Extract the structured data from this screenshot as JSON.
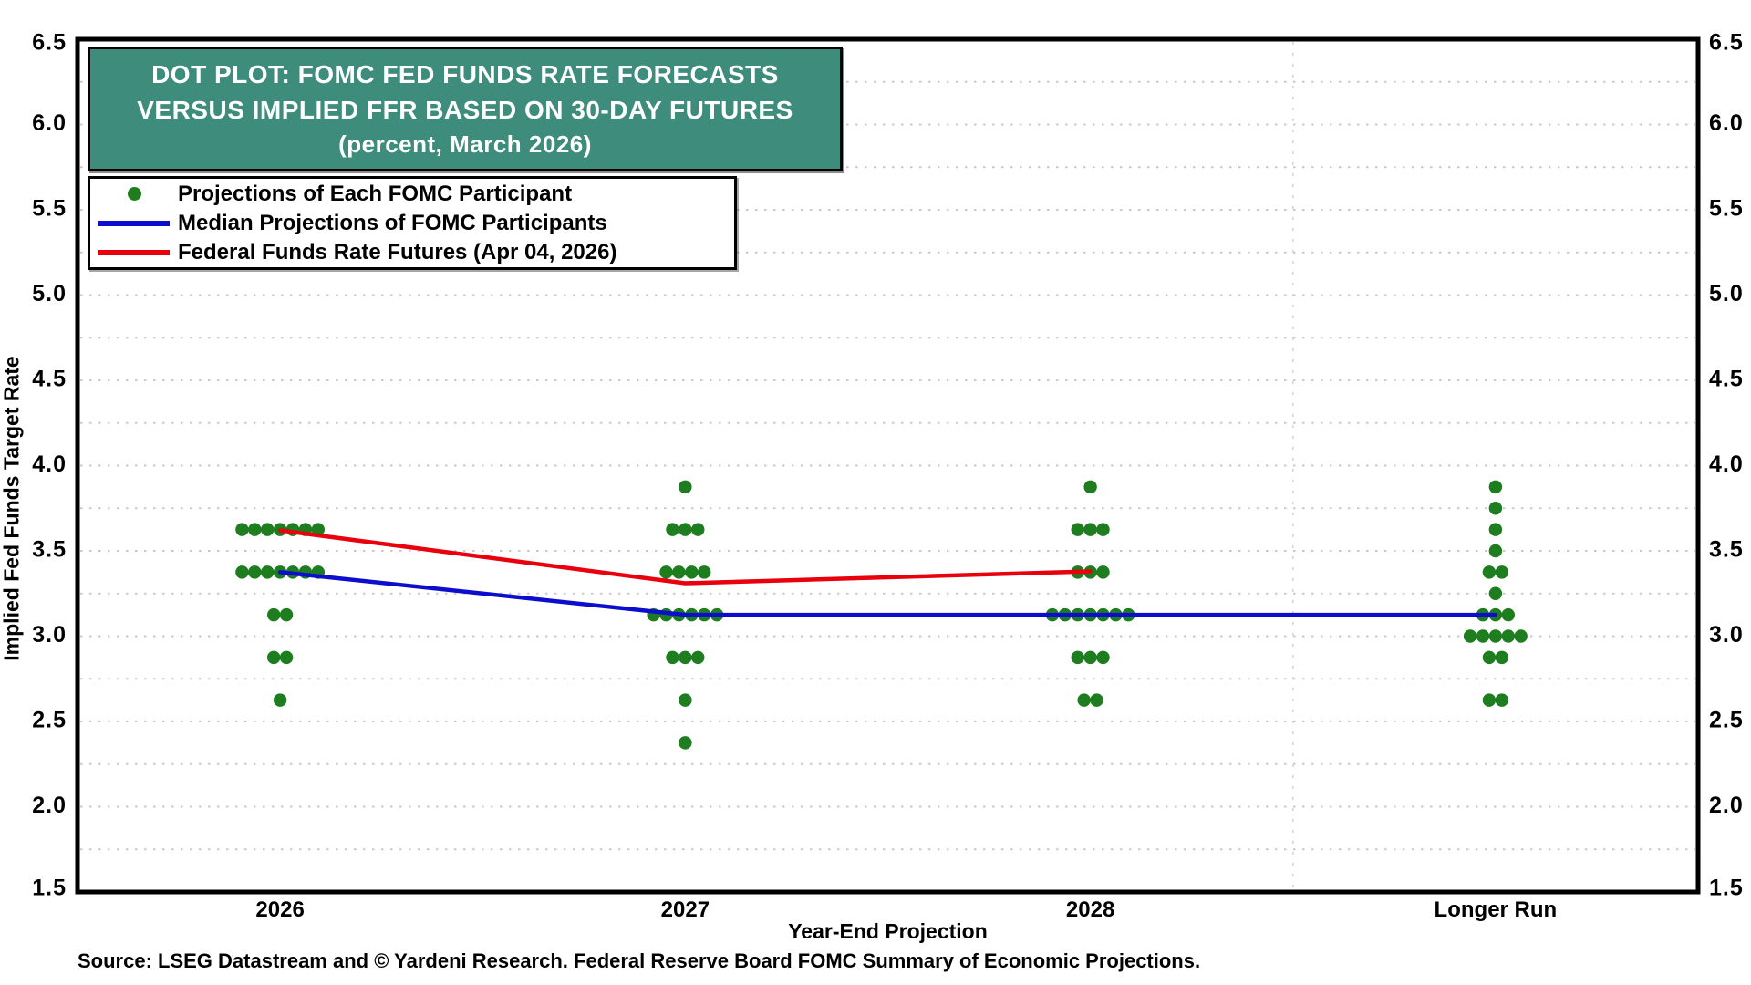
{
  "title_box": {
    "line1": "DOT PLOT: FOMC FED FUNDS RATE FORECASTS",
    "line2": "VERSUS IMPLIED FFR BASED ON 30-DAY FUTURES",
    "line3": "(percent, March 2026)",
    "bg_color": "#3E8C7B",
    "text_color": "#FFFFFF"
  },
  "legend": {
    "items": [
      {
        "swatch": "dot",
        "color": "#1E7D1E",
        "label": "Projections of Each FOMC Participant"
      },
      {
        "swatch": "line",
        "color": "#0D0DCE",
        "label": "Median Projections of FOMC Participants"
      },
      {
        "swatch": "line",
        "color": "#E8000D",
        "label": "Federal Funds Rate Futures (Apr 04, 2026)"
      }
    ]
  },
  "footer": {
    "source": "Source: LSEG Datastream and © Yardeni Research. Federal Reserve Board FOMC Summary of Economic Projections."
  },
  "chart_data": {
    "type": "scatter",
    "title": "DOT PLOT: FOMC FED FUNDS RATE FORECASTS VERSUS IMPLIED FFR BASED ON 30-DAY FUTURES (percent, March 2026)",
    "xlabel": "Year-End Projection",
    "ylabel": "Implied Fed Funds Target Rate",
    "categories": [
      "2026",
      "2027",
      "2028",
      "Longer Run"
    ],
    "ylim": [
      1.5,
      6.5
    ],
    "y_ticks": [
      6.5,
      6.0,
      5.5,
      5.0,
      4.5,
      4.0,
      3.5,
      3.0,
      2.5,
      2.0,
      1.5
    ],
    "y_tick_labels": [
      "6.5",
      "6.0",
      "5.5",
      "5.0",
      "4.5",
      "4.0",
      "3.5",
      "3.0",
      "2.5",
      "2.0",
      "1.5"
    ],
    "grid": {
      "horizontal_step": 0.25,
      "style": "dotted",
      "color": "#C9C9C9",
      "vertical_divider_fraction": 0.75
    },
    "legend_position": "top-left",
    "dot_series": {
      "name": "Projections of Each FOMC Participant",
      "color": "#1E7D1E",
      "dots_by_category": [
        {
          "category": "2026",
          "rows": [
            {
              "rate": 3.625,
              "count": 7
            },
            {
              "rate": 3.375,
              "count": 7
            },
            {
              "rate": 3.125,
              "count": 2
            },
            {
              "rate": 2.875,
              "count": 2
            },
            {
              "rate": 2.625,
              "count": 1
            }
          ]
        },
        {
          "category": "2027",
          "rows": [
            {
              "rate": 3.875,
              "count": 1
            },
            {
              "rate": 3.625,
              "count": 3
            },
            {
              "rate": 3.375,
              "count": 4
            },
            {
              "rate": 3.125,
              "count": 6
            },
            {
              "rate": 2.875,
              "count": 3
            },
            {
              "rate": 2.625,
              "count": 1
            },
            {
              "rate": 2.375,
              "count": 1
            }
          ]
        },
        {
          "category": "2028",
          "rows": [
            {
              "rate": 3.875,
              "count": 1
            },
            {
              "rate": 3.625,
              "count": 3
            },
            {
              "rate": 3.375,
              "count": 3
            },
            {
              "rate": 3.125,
              "count": 7
            },
            {
              "rate": 2.875,
              "count": 3
            },
            {
              "rate": 2.625,
              "count": 2
            }
          ]
        },
        {
          "category": "Longer Run",
          "rows": [
            {
              "rate": 3.875,
              "count": 1
            },
            {
              "rate": 3.75,
              "count": 1
            },
            {
              "rate": 3.625,
              "count": 1
            },
            {
              "rate": 3.5,
              "count": 1
            },
            {
              "rate": 3.375,
              "count": 2
            },
            {
              "rate": 3.25,
              "count": 1
            },
            {
              "rate": 3.125,
              "count": 3
            },
            {
              "rate": 3.0,
              "count": 5
            },
            {
              "rate": 2.875,
              "count": 2
            },
            {
              "rate": 2.625,
              "count": 2
            }
          ]
        }
      ]
    },
    "line_series": [
      {
        "name": "Median Projections of FOMC Participants",
        "color": "#0D0DCE",
        "categories": [
          "2026",
          "2027",
          "2028",
          "Longer Run"
        ],
        "values": [
          3.375,
          3.125,
          3.125,
          3.125
        ]
      },
      {
        "name": "Federal Funds Rate Futures (Apr 04, 2026)",
        "color": "#E8000D",
        "categories": [
          "2026",
          "2027",
          "2028"
        ],
        "values": [
          3.62,
          3.31,
          3.38
        ]
      }
    ]
  }
}
